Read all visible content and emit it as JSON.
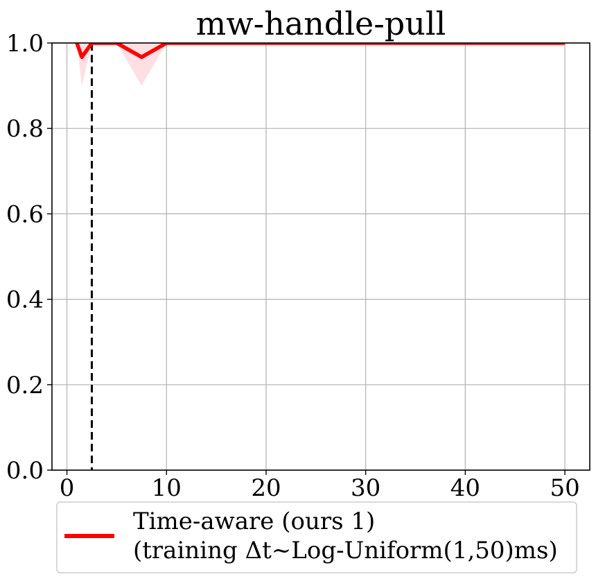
{
  "chart_data": {
    "type": "line",
    "title": "mw-handle-pull",
    "xlabel": "",
    "ylabel": "",
    "xlim": [
      -1.5,
      52.5
    ],
    "ylim": [
      0.0,
      1.0
    ],
    "x_ticks": [
      "0",
      "10",
      "20",
      "30",
      "40",
      "50"
    ],
    "y_ticks": [
      "0.0",
      "0.2",
      "0.4",
      "0.6",
      "0.8",
      "1.0"
    ],
    "grid": true,
    "vline_x": 2.5,
    "legend_position": "below",
    "colors": {
      "line": "#ff0000",
      "band": "#ffdfe3",
      "vline": "#000000"
    },
    "series": [
      {
        "name": "Time-aware (ours 1)\n(training Δt~Log-Uniform(1,50)ms)",
        "legend_line1": "Time-aware (ours 1)",
        "legend_line2": "(training Δt~Log-Uniform(1,50)ms)",
        "x": [
          1,
          1.5,
          2.5,
          5,
          7.5,
          10,
          20,
          30,
          40,
          50
        ],
        "y": [
          1.0,
          0.967,
          1.0,
          1.0,
          0.967,
          1.0,
          1.0,
          1.0,
          1.0,
          1.0
        ],
        "y_lower": [
          1.0,
          0.9,
          1.0,
          1.0,
          0.9,
          1.0,
          1.0,
          1.0,
          1.0,
          1.0
        ],
        "y_upper": [
          1.0,
          1.0,
          1.0,
          1.0,
          1.0,
          1.0,
          1.0,
          1.0,
          1.0,
          1.0
        ]
      }
    ]
  }
}
